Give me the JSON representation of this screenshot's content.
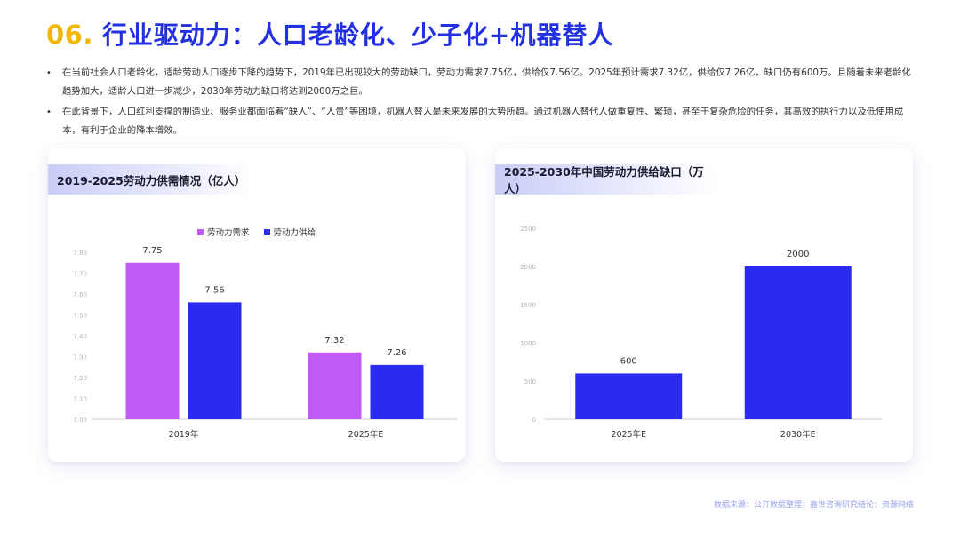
{
  "header": {
    "number": "06.",
    "title": "行业驱动力：人口老龄化、少子化+机器替人"
  },
  "bullets": [
    "在当前社会人口老龄化，适龄劳动人口逐步下降的趋势下，2019年已出现较大的劳动缺口，劳动力需求7.75亿，供给仅7.56亿。2025年预计需求7.32亿，供给仅7.26亿，缺口仍有600万。且随着未来老龄化趋势加大，适龄人口进一步减少，2030年劳动力缺口将达到2000万之巨。",
    "在此背景下，人口红利支撑的制造业、服务业都面临着“缺人”、“人贵”等困境，机器人替人是未来发展的大势所趋。通过机器人替代人做重复性、繁琐，甚至于复杂危险的任务，其高效的执行力以及低使用成本，有利于企业的降本增效。"
  ],
  "colors": {
    "title_number": "#f2b705",
    "title_text": "#2330e0",
    "demand": "#c159f5",
    "supply": "#2b2bf0",
    "gap": "#2b2bf0"
  },
  "chart_data": [
    {
      "type": "bar",
      "title": "2019-2025劳动力供需情况（亿人）",
      "categories": [
        "2019年",
        "2025年E"
      ],
      "series": [
        {
          "name": "劳动力需求",
          "values": [
            7.75,
            7.32
          ]
        },
        {
          "name": "劳动力供给",
          "values": [
            7.56,
            7.26
          ]
        }
      ],
      "data_labels": [
        [
          "7.75",
          "7.32"
        ],
        [
          "7.56",
          "7.26"
        ]
      ],
      "yticks": [
        "7.00",
        "7.10",
        "7.20",
        "7.30",
        "7.40",
        "7.50",
        "7.60",
        "7.70",
        "7.80"
      ],
      "ylim": [
        7.0,
        7.8
      ],
      "legend": "top"
    },
    {
      "type": "bar",
      "title": "2025-2030年中国劳动力供给缺口（万人）",
      "categories": [
        "2025年E",
        "2030年E"
      ],
      "series": [
        {
          "values": [
            600,
            2000
          ]
        }
      ],
      "data_labels": [
        [
          "600",
          "2000"
        ]
      ],
      "yticks": [
        "0",
        "500",
        "1000",
        "1500",
        "2000",
        "2500"
      ],
      "ylim": [
        0,
        2500
      ]
    }
  ],
  "footer": {
    "source": "数据来源：公开数据整理；嘉世咨询研究结论；资源网络"
  }
}
